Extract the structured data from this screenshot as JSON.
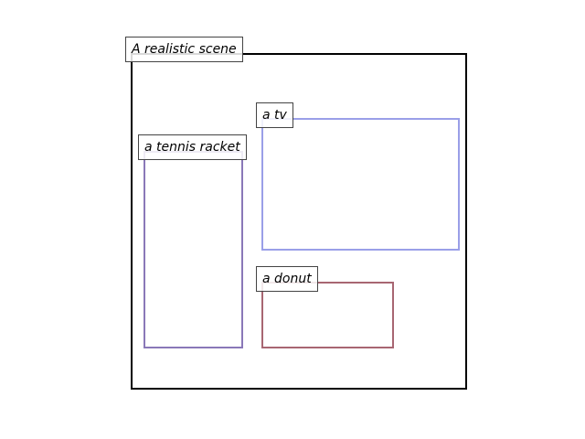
{
  "scene": {
    "label": "A realistic scene",
    "border_color": "#000000"
  },
  "objects": [
    {
      "label": "a tv",
      "border_color": "#9a9fe8"
    },
    {
      "label": "a tennis racket",
      "border_color": "#8a78b8"
    },
    {
      "label": "a donut",
      "border_color": "#a86672"
    }
  ]
}
